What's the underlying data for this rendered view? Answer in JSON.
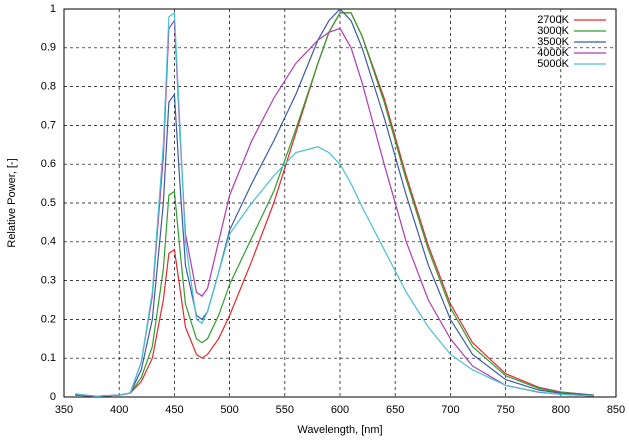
{
  "chart_data": {
    "type": "line",
    "x_label": "Wavelength, [nm]",
    "y_label": "Relative Power, [-]",
    "x": [
      360,
      380,
      400,
      410,
      420,
      430,
      440,
      445,
      450,
      455,
      460,
      470,
      475,
      480,
      490,
      500,
      520,
      540,
      560,
      580,
      590,
      600,
      610,
      620,
      640,
      660,
      680,
      700,
      720,
      750,
      780,
      800,
      830
    ],
    "series": [
      {
        "name": "2700K",
        "color": "#e8282c",
        "values": [
          0.005,
          0.002,
          0.005,
          0.01,
          0.04,
          0.1,
          0.25,
          0.37,
          0.38,
          0.28,
          0.18,
          0.11,
          0.1,
          0.11,
          0.15,
          0.21,
          0.35,
          0.5,
          0.68,
          0.86,
          0.94,
          0.99,
          0.99,
          0.93,
          0.77,
          0.57,
          0.39,
          0.24,
          0.14,
          0.06,
          0.025,
          0.013,
          0.005
        ]
      },
      {
        "name": "3000K",
        "color": "#2ea02e",
        "values": [
          0.005,
          0.002,
          0.005,
          0.01,
          0.05,
          0.13,
          0.33,
          0.52,
          0.53,
          0.38,
          0.24,
          0.15,
          0.14,
          0.15,
          0.21,
          0.29,
          0.41,
          0.53,
          0.69,
          0.86,
          0.94,
          0.99,
          0.99,
          0.93,
          0.76,
          0.56,
          0.38,
          0.23,
          0.13,
          0.055,
          0.022,
          0.012,
          0.005
        ]
      },
      {
        "name": "3500K",
        "color": "#3c5aa8",
        "values": [
          0.005,
          0.002,
          0.005,
          0.01,
          0.07,
          0.2,
          0.5,
          0.76,
          0.78,
          0.55,
          0.34,
          0.21,
          0.2,
          0.22,
          0.32,
          0.43,
          0.55,
          0.66,
          0.78,
          0.92,
          0.97,
          1.0,
          0.97,
          0.9,
          0.72,
          0.52,
          0.34,
          0.2,
          0.11,
          0.045,
          0.018,
          0.01,
          0.004
        ]
      },
      {
        "name": "4000K",
        "color": "#b03cb0",
        "values": [
          0.005,
          0.002,
          0.005,
          0.01,
          0.09,
          0.26,
          0.62,
          0.95,
          0.97,
          0.68,
          0.42,
          0.27,
          0.26,
          0.28,
          0.4,
          0.52,
          0.66,
          0.77,
          0.86,
          0.92,
          0.94,
          0.95,
          0.9,
          0.81,
          0.6,
          0.4,
          0.25,
          0.15,
          0.08,
          0.03,
          0.012,
          0.007,
          0.003
        ]
      },
      {
        "name": "5000K",
        "color": "#48c0d4",
        "values": [
          0.008,
          0.002,
          0.005,
          0.01,
          0.09,
          0.27,
          0.65,
          0.98,
          0.99,
          0.7,
          0.4,
          0.2,
          0.19,
          0.22,
          0.32,
          0.42,
          0.5,
          0.57,
          0.63,
          0.645,
          0.63,
          0.6,
          0.55,
          0.49,
          0.38,
          0.27,
          0.18,
          0.11,
          0.07,
          0.03,
          0.013,
          0.007,
          0.003
        ]
      }
    ],
    "xlim": [
      350,
      850
    ],
    "xticks": [
      350,
      400,
      450,
      500,
      550,
      600,
      650,
      700,
      750,
      800,
      850
    ],
    "ylim": [
      0,
      1
    ],
    "yticks": [
      0,
      0.1,
      0.2,
      0.3,
      0.4,
      0.5,
      0.6,
      0.7,
      0.8,
      0.9,
      1
    ],
    "grid": true,
    "legend": "top-right"
  }
}
